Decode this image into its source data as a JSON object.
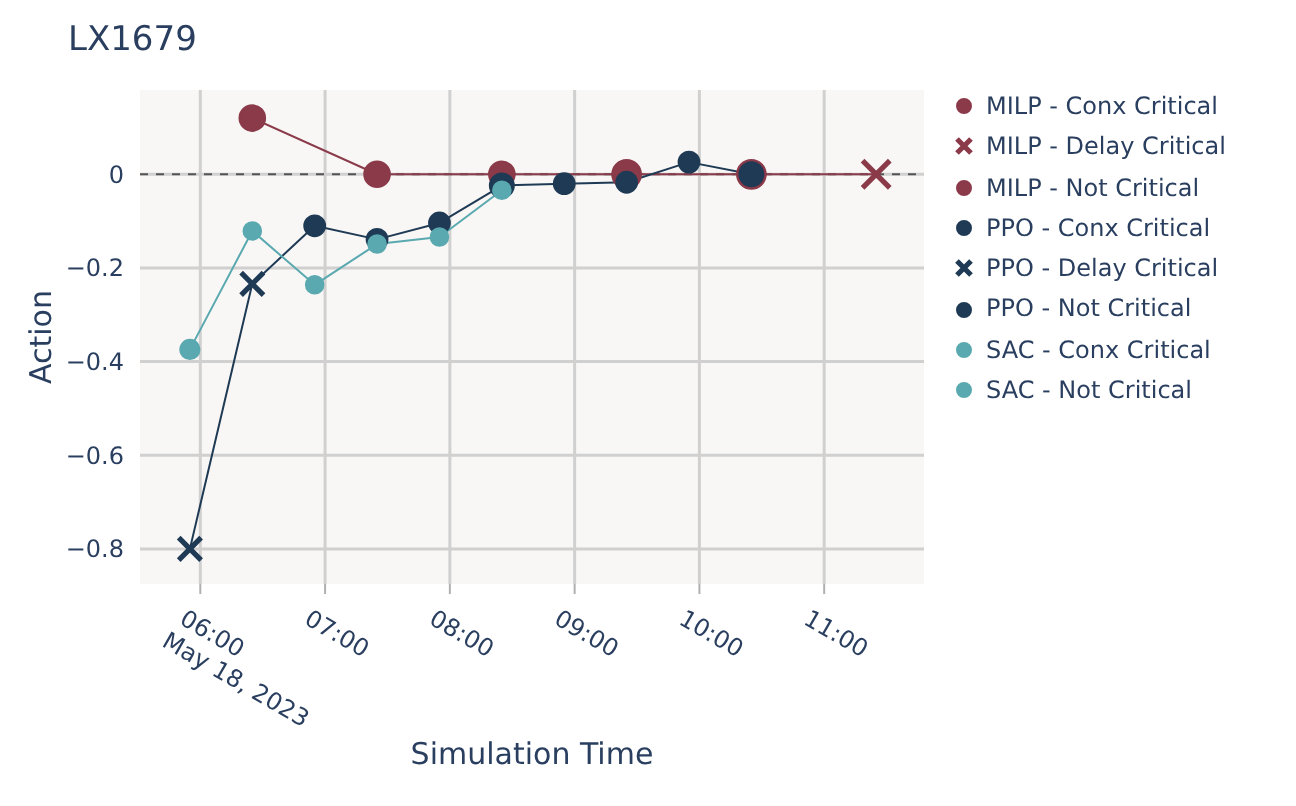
{
  "chart_data": {
    "type": "line",
    "title": "LX1679",
    "xlabel": "Simulation Time",
    "ylabel": "Action",
    "xlim": [
      "2023-05-18T05:31",
      "2023-05-18T11:48"
    ],
    "ylim": [
      -0.875,
      0.18
    ],
    "xticks": [
      {
        "value": "2023-05-18T06:00",
        "label": "06:00"
      },
      {
        "value": "2023-05-18T07:00",
        "label": "07:00"
      },
      {
        "value": "2023-05-18T08:00",
        "label": "08:00"
      },
      {
        "value": "2023-05-18T09:00",
        "label": "09:00"
      },
      {
        "value": "2023-05-18T10:00",
        "label": "10:00"
      },
      {
        "value": "2023-05-18T11:00",
        "label": "11:00"
      }
    ],
    "yticks": [
      {
        "value": -0.8,
        "label": "−0.8"
      },
      {
        "value": -0.6,
        "label": "−0.6"
      },
      {
        "value": -0.4,
        "label": "−0.4"
      },
      {
        "value": -0.2,
        "label": "−0.2"
      },
      0
    ],
    "annotations": [
      "May 18, 2023"
    ],
    "grid": true,
    "legend": "top right",
    "ref_lines": [
      {
        "axis": "y",
        "value": 0,
        "color": "#555555",
        "line_style": "dashed"
      }
    ],
    "series": [
      {
        "color": "#8b3a4a",
        "marker": "none",
        "x": [
          "2023-05-18T06:25",
          "2023-05-18T07:25",
          "2023-05-18T08:25",
          "2023-05-18T09:25",
          "2023-05-18T10:25",
          "2023-05-18T11:25"
        ],
        "values": [
          0.12,
          0,
          0,
          0,
          0,
          0
        ]
      },
      {
        "color": "#1f3a55",
        "marker": "none",
        "x": [
          "2023-05-18T05:55",
          "2023-05-18T06:25",
          "2023-05-18T06:55",
          "2023-05-18T07:25",
          "2023-05-18T07:55",
          "2023-05-18T08:25",
          "2023-05-18T08:55",
          "2023-05-18T09:25",
          "2023-05-18T09:55",
          "2023-05-18T10:25"
        ],
        "values": [
          -0.8,
          -0.234,
          -0.11,
          -0.139,
          -0.104,
          -0.024,
          -0.02,
          -0.017,
          0.026,
          0
        ]
      },
      {
        "color": "#5aa9b0",
        "marker": "none",
        "x": [
          "2023-05-18T05:55",
          "2023-05-18T06:25",
          "2023-05-18T06:55",
          "2023-05-18T07:25",
          "2023-05-18T07:55",
          "2023-05-18T08:25"
        ],
        "values": [
          -0.374,
          -0.121,
          -0.236,
          -0.149,
          -0.134,
          -0.034
        ]
      },
      {
        "type": "scatter",
        "name": "MILP - Conx Critical",
        "color": "#8b3a4a",
        "marker": "circle",
        "x": [
          "2023-05-18T09:25",
          "2023-05-18T10:25"
        ],
        "values": [
          0,
          0
        ]
      },
      {
        "type": "scatter",
        "name": "MILP - Delay Critical",
        "color": "#8b3a4a",
        "marker": "cross",
        "x": [
          "2023-05-18T11:25"
        ],
        "values": [
          0
        ]
      },
      {
        "type": "scatter",
        "name": "MILP - Not Critical",
        "color": "#8b3a4a",
        "marker": "circle",
        "x": [
          "2023-05-18T06:25",
          "2023-05-18T07:25",
          "2023-05-18T08:25"
        ],
        "values": [
          0.12,
          0,
          0
        ]
      },
      {
        "type": "scatter",
        "name": "PPO - Conx Critical",
        "color": "#1f3a55",
        "marker": "circle",
        "x": [
          "2023-05-18T08:25",
          "2023-05-18T10:25"
        ],
        "values": [
          -0.024,
          0
        ]
      },
      {
        "type": "scatter",
        "name": "PPO - Delay Critical",
        "color": "#1f3a55",
        "marker": "cross",
        "x": [
          "2023-05-18T05:55",
          "2023-05-18T06:25"
        ],
        "values": [
          -0.8,
          -0.234
        ]
      },
      {
        "type": "scatter",
        "name": "PPO - Not Critical",
        "color": "#1f3a55",
        "marker": "circle",
        "x": [
          "2023-05-18T06:55",
          "2023-05-18T07:25",
          "2023-05-18T07:55",
          "2023-05-18T08:55",
          "2023-05-18T09:25",
          "2023-05-18T09:55"
        ],
        "values": [
          -0.11,
          -0.139,
          -0.104,
          -0.02,
          -0.017,
          0.026
        ]
      },
      {
        "type": "scatter",
        "name": "SAC - Conx Critical",
        "color": "#5aa9b0",
        "marker": "circle",
        "x": [
          "2023-05-18T05:55"
        ],
        "values": [
          -0.374
        ]
      },
      {
        "type": "scatter",
        "name": "SAC - Not Critical",
        "color": "#5aa9b0",
        "marker": "circle",
        "x": [
          "2023-05-18T06:25",
          "2023-05-18T06:55",
          "2023-05-18T07:25",
          "2023-05-18T07:55",
          "2023-05-18T08:25"
        ],
        "values": [
          -0.121,
          -0.236,
          -0.149,
          -0.134,
          -0.034
        ]
      }
    ]
  }
}
